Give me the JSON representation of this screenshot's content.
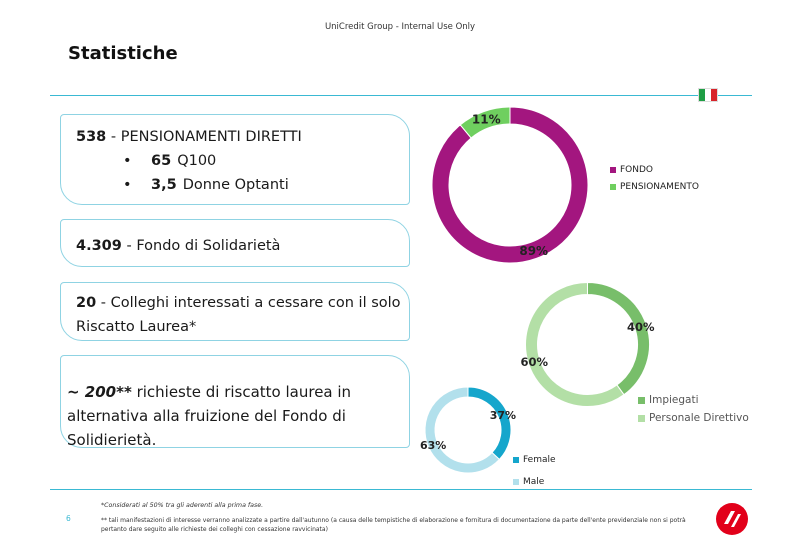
{
  "header": {
    "note": "UniCredit Group - Internal Use Only"
  },
  "page": {
    "title": "Statistiche",
    "number": "6"
  },
  "cards": {
    "pensionamenti": {
      "value": "538",
      "label": " - PENSIONAMENTI DIRETTI",
      "bullets": [
        {
          "value": "65",
          "label": "Q100"
        },
        {
          "value": "3,5",
          "label": "Donne Optanti"
        }
      ]
    },
    "fondo": {
      "value": "4.309",
      "label": " - Fondo di Solidarietà"
    },
    "laurea": {
      "value": "20",
      "label": " - Colleghi interessati a cessare con il solo Riscatto Laurea*"
    },
    "richieste": {
      "value": "~ 200**",
      "label": " richieste di riscatto laurea in alternativa alla fruizione del Fondo di Solidierietà."
    }
  },
  "chart_data": [
    {
      "type": "pie",
      "categories": [
        "FONDO",
        "PENSIONAMENTO"
      ],
      "values": [
        89,
        11
      ],
      "labels": [
        "89%",
        "11%"
      ],
      "colors": [
        "#a3167f",
        "#6fcf5f"
      ],
      "legend": "right"
    },
    {
      "type": "pie",
      "categories": [
        "Impiegati",
        "Personale Direttivo"
      ],
      "values": [
        40,
        60
      ],
      "labels": [
        "40%",
        "60%"
      ],
      "colors": [
        "#78be6a",
        "#b3dfa6"
      ],
      "legend": "right"
    },
    {
      "type": "pie",
      "categories": [
        "Female",
        "Male"
      ],
      "values": [
        37,
        63
      ],
      "labels": [
        "37%",
        "63%"
      ],
      "colors": [
        "#15a6cc",
        "#b2e0ec"
      ],
      "legend": "right"
    }
  ],
  "footnotes": {
    "first": "*Considerati al 50% tra gli aderenti alla prima fase.",
    "second": "** tali manifestazioni di interesse verranno analizzate a partire dall'autunno (a causa delle tempistiche di elaborazione e fornitura di documentazione da parte dell'ente previdenziale non si potrà pertanto dare seguito alle richieste dei colleghi con cessazione ravvicinata)"
  },
  "colors": {
    "accent": "#3ab9d3",
    "flag_green": "#1f9e45",
    "flag_white": "#ffffff",
    "flag_red": "#d8232a",
    "logo_red": "#e2001a"
  },
  "icons": {
    "flag": "italian-flag-icon",
    "logo": "unicredit-logo-icon"
  }
}
